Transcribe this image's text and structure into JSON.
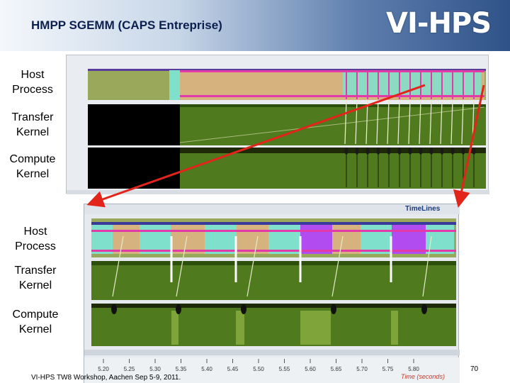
{
  "slide": {
    "title": "HMPP SGEMM (CAPS Entreprise)",
    "logo_text": "VI-HPS",
    "footer": "VI-HPS TW8 Workshop, Aachen Sep 5-9, 2011.",
    "page_number": "70"
  },
  "top_view": {
    "rows": [
      {
        "label": "Host Process"
      },
      {
        "label": "Transfer Kernel"
      },
      {
        "label": "Compute Kernel"
      }
    ]
  },
  "zoom_view": {
    "window_title": "TimeLines",
    "rows": [
      {
        "label": "Host Process"
      },
      {
        "label": "Transfer Kernel"
      },
      {
        "label": "Compute Kernel"
      }
    ],
    "axis_ticks": [
      "5.20",
      "5.25",
      "5.30",
      "5.35",
      "5.40",
      "5.45",
      "5.50",
      "5.55",
      "5.60",
      "5.65",
      "5.70",
      "5.75",
      "5.80"
    ],
    "axis_label": "Time (seconds)"
  },
  "colors": {
    "olive": "#9aa85c",
    "tan": "#d6b27e",
    "cyan": "#7fe0cc",
    "magenta": "#e23aa8",
    "green": "#4f7a1d",
    "dark_green": "#2d4f0c",
    "purple": "#b04cf0",
    "red_arrow": "#e3241b"
  }
}
